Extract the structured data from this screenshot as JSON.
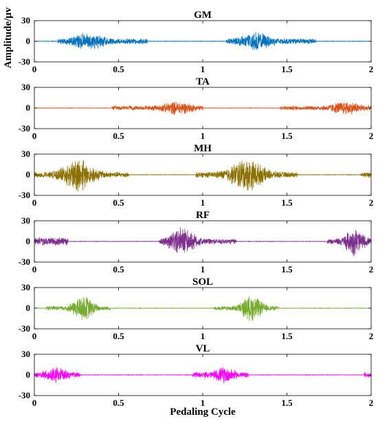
{
  "chart_data": {
    "type": "line",
    "xlabel": "Pedaling Cycle",
    "ylabel": "Amplitude/μv",
    "xlim": [
      0,
      2
    ],
    "ylim": [
      -30,
      30
    ],
    "xticks": [
      0,
      0.5,
      1,
      1.5,
      2
    ],
    "xtick_labels": [
      "0",
      "0.5",
      "1",
      "1.5",
      "2"
    ],
    "yticks": [
      -30,
      0,
      30
    ],
    "ytick_labels": [
      "-30",
      "0",
      "30"
    ],
    "grid": false,
    "series": [
      {
        "name": "GM",
        "color": "#0072BD",
        "bursts": [
          [
            0.14,
            0.67,
            4,
            0.32,
            13
          ],
          [
            1.14,
            1.67,
            4,
            1.32,
            13
          ]
        ]
      },
      {
        "name": "TA",
        "color": "#D95319",
        "bursts": [
          [
            0.46,
            1.0,
            3,
            0.85,
            10
          ],
          [
            1.46,
            2.0,
            3,
            1.85,
            10
          ]
        ]
      },
      {
        "name": "MH",
        "color": "#8C7000",
        "bursts": [
          [
            0.0,
            0.56,
            4,
            0.26,
            24
          ],
          [
            0.96,
            1.56,
            4,
            1.26,
            24
          ],
          [
            1.94,
            2.0,
            4,
            1.97,
            4
          ]
        ]
      },
      {
        "name": "RF",
        "color": "#7E2F8E",
        "bursts": [
          [
            0.0,
            0.2,
            6,
            0.05,
            6
          ],
          [
            0.74,
            1.2,
            4,
            0.88,
            20
          ],
          [
            1.74,
            2.0,
            4,
            1.9,
            20
          ]
        ]
      },
      {
        "name": "SOL",
        "color": "#77AC30",
        "bursts": [
          [
            0.07,
            0.45,
            3,
            0.29,
            19
          ],
          [
            1.07,
            1.45,
            3,
            1.29,
            19
          ]
        ]
      },
      {
        "name": "VL",
        "color": "#FF00FF",
        "bursts": [
          [
            0.0,
            0.27,
            4,
            0.13,
            12
          ],
          [
            0.94,
            1.27,
            4,
            1.13,
            12
          ],
          [
            1.96,
            2.0,
            4,
            1.98,
            4
          ]
        ]
      }
    ]
  }
}
